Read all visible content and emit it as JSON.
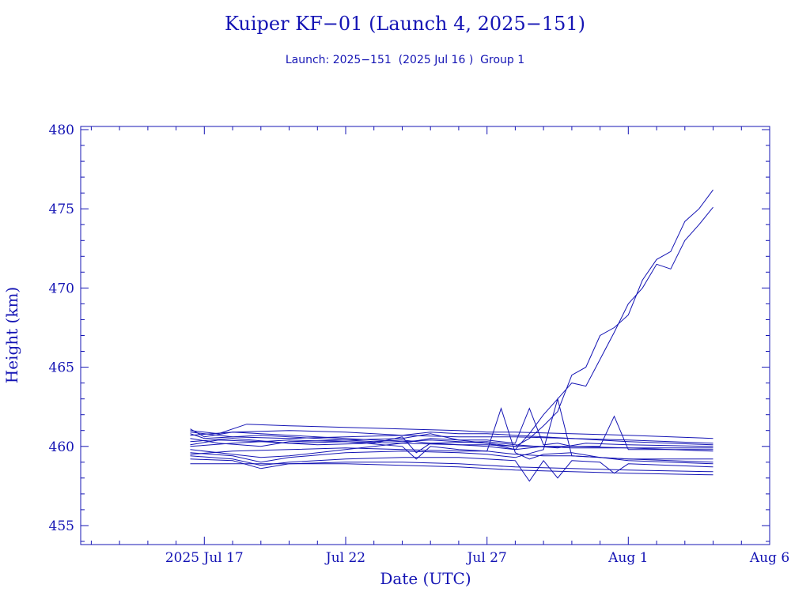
{
  "chart_data": {
    "type": "line",
    "title": "Kuiper KF−01 (Launch 4, 2025−151)",
    "subtitle": "Launch: 2025−151  (2025 Jul 16 )  Group 1",
    "xlabel": "Date (UTC)",
    "ylabel": "Height (km)",
    "xlim": [
      "2025-07-12T15:00",
      "2025-08-06T00:00"
    ],
    "ylim": [
      453.8,
      480.2
    ],
    "x_ticks": [
      {
        "date": "2025-07-17",
        "label": "2025 Jul 17"
      },
      {
        "date": "2025-07-22",
        "label": "Jul 22"
      },
      {
        "date": "2025-07-27",
        "label": "Jul 27"
      },
      {
        "date": "2025-08-01",
        "label": "Aug  1"
      },
      {
        "date": "2025-08-06",
        "label": "Aug  6"
      }
    ],
    "y_ticks": [
      455,
      460,
      465,
      470,
      475,
      480
    ],
    "grid": false,
    "line_color": "#1414b4",
    "series": [
      {
        "values": [
          [
            "2025-07-16T12:00",
            461.1
          ],
          [
            "2025-07-17T00:00",
            460.6
          ],
          [
            "2025-07-18T00:00",
            460.9
          ],
          [
            "2025-07-19T00:00",
            460.8
          ],
          [
            "2025-07-20T00:00",
            460.7
          ],
          [
            "2025-07-21T00:00",
            460.6
          ],
          [
            "2025-07-22T00:00",
            460.5
          ],
          [
            "2025-07-23T00:00",
            460.4
          ],
          [
            "2025-07-24T00:00",
            460.3
          ],
          [
            "2025-07-25T00:00",
            460.4
          ],
          [
            "2025-07-26T00:00",
            460.3
          ],
          [
            "2025-07-27T00:00",
            460.2
          ],
          [
            "2025-07-28T00:00",
            460.0
          ],
          [
            "2025-07-28T12:00",
            460.5
          ],
          [
            "2025-07-29T00:00",
            461.3
          ],
          [
            "2025-07-29T12:00",
            462.2
          ],
          [
            "2025-07-30T00:00",
            464.5
          ],
          [
            "2025-07-30T12:00",
            465.0
          ],
          [
            "2025-07-31T00:00",
            467.0
          ],
          [
            "2025-07-31T12:00",
            467.5
          ],
          [
            "2025-08-01T00:00",
            468.3
          ],
          [
            "2025-08-01T12:00",
            470.5
          ],
          [
            "2025-08-02T00:00",
            471.8
          ],
          [
            "2025-08-02T12:00",
            472.3
          ],
          [
            "2025-08-03T00:00",
            474.2
          ],
          [
            "2025-08-03T12:00",
            475.0
          ],
          [
            "2025-08-04T00:00",
            476.2
          ]
        ]
      },
      {
        "values": [
          [
            "2025-07-16T12:00",
            460.8
          ],
          [
            "2025-07-17T00:00",
            460.5
          ],
          [
            "2025-07-18T00:00",
            460.6
          ],
          [
            "2025-07-19T00:00",
            460.7
          ],
          [
            "2025-07-20T00:00",
            460.6
          ],
          [
            "2025-07-21T00:00",
            460.5
          ],
          [
            "2025-07-22T00:00",
            460.4
          ],
          [
            "2025-07-23T00:00",
            460.3
          ],
          [
            "2025-07-24T00:00",
            460.4
          ],
          [
            "2025-07-25T00:00",
            460.2
          ],
          [
            "2025-07-26T00:00",
            460.1
          ],
          [
            "2025-07-27T00:00",
            460.0
          ],
          [
            "2025-07-28T00:00",
            459.8
          ],
          [
            "2025-07-28T12:00",
            460.8
          ],
          [
            "2025-07-29T00:00",
            462.0
          ],
          [
            "2025-07-29T12:00",
            463.0
          ],
          [
            "2025-07-30T00:00",
            464.0
          ],
          [
            "2025-07-30T12:00",
            463.8
          ],
          [
            "2025-07-31T00:00",
            465.5
          ],
          [
            "2025-07-31T12:00",
            467.2
          ],
          [
            "2025-08-01T00:00",
            469.0
          ],
          [
            "2025-08-01T12:00",
            470.0
          ],
          [
            "2025-08-02T00:00",
            471.5
          ],
          [
            "2025-08-02T12:00",
            471.2
          ],
          [
            "2025-08-03T00:00",
            473.0
          ],
          [
            "2025-08-03T12:00",
            474.0
          ],
          [
            "2025-08-04T00:00",
            475.1
          ]
        ]
      },
      {
        "values": [
          [
            "2025-07-16T12:00",
            461.0
          ],
          [
            "2025-07-17T12:00",
            460.8
          ],
          [
            "2025-07-18T12:00",
            461.4
          ],
          [
            "2025-07-20T00:00",
            461.3
          ],
          [
            "2025-07-22T00:00",
            461.2
          ],
          [
            "2025-07-24T00:00",
            461.1
          ],
          [
            "2025-07-26T00:00",
            461.0
          ],
          [
            "2025-07-27T00:00",
            460.9
          ],
          [
            "2025-07-28T00:00",
            460.9
          ],
          [
            "2025-07-30T00:00",
            460.8
          ],
          [
            "2025-08-01T00:00",
            460.7
          ],
          [
            "2025-08-04T00:00",
            460.5
          ]
        ]
      },
      {
        "values": [
          [
            "2025-07-16T12:00",
            460.7
          ],
          [
            "2025-07-18T00:00",
            460.9
          ],
          [
            "2025-07-20T00:00",
            461.0
          ],
          [
            "2025-07-22T00:00",
            460.9
          ],
          [
            "2025-07-24T00:00",
            460.7
          ],
          [
            "2025-07-26T00:00",
            460.6
          ],
          [
            "2025-07-27T00:00",
            460.6
          ],
          [
            "2025-07-28T00:00",
            460.6
          ],
          [
            "2025-07-30T00:00",
            460.5
          ],
          [
            "2025-08-01T00:00",
            460.4
          ],
          [
            "2025-08-04T00:00",
            460.2
          ]
        ]
      },
      {
        "values": [
          [
            "2025-07-16T12:00",
            460.5
          ],
          [
            "2025-07-17T12:00",
            460.2
          ],
          [
            "2025-07-19T00:00",
            460.0
          ],
          [
            "2025-07-20T00:00",
            460.3
          ],
          [
            "2025-07-22T00:00",
            460.4
          ],
          [
            "2025-07-24T00:00",
            460.5
          ],
          [
            "2025-07-25T00:00",
            460.8
          ],
          [
            "2025-07-26T00:00",
            460.4
          ],
          [
            "2025-07-27T00:00",
            460.2
          ],
          [
            "2025-07-28T00:00",
            459.8
          ],
          [
            "2025-07-29T00:00",
            460.0
          ],
          [
            "2025-07-30T00:00",
            459.9
          ],
          [
            "2025-08-01T00:00",
            459.9
          ],
          [
            "2025-08-04T00:00",
            459.9
          ]
        ]
      },
      {
        "values": [
          [
            "2025-07-16T12:00",
            460.3
          ],
          [
            "2025-07-18T00:00",
            460.5
          ],
          [
            "2025-07-20T00:00",
            460.2
          ],
          [
            "2025-07-22T00:00",
            460.3
          ],
          [
            "2025-07-24T00:00",
            460.2
          ],
          [
            "2025-07-26T00:00",
            460.1
          ],
          [
            "2025-07-27T00:00",
            460.1
          ],
          [
            "2025-07-28T00:00",
            460.0
          ],
          [
            "2025-07-30T00:00",
            460.0
          ],
          [
            "2025-08-01T00:00",
            459.9
          ],
          [
            "2025-08-04T00:00",
            459.7
          ]
        ]
      },
      {
        "values": [
          [
            "2025-07-16T12:00",
            460.0
          ],
          [
            "2025-07-18T00:00",
            460.2
          ],
          [
            "2025-07-20T00:00",
            460.4
          ],
          [
            "2025-07-22T00:00",
            460.3
          ],
          [
            "2025-07-24T00:00",
            460.0
          ],
          [
            "2025-07-24T12:00",
            459.2
          ],
          [
            "2025-07-25T00:00",
            460.0
          ],
          [
            "2025-07-26T00:00",
            459.8
          ],
          [
            "2025-07-27T00:00",
            459.7
          ],
          [
            "2025-07-27T12:00",
            462.4
          ],
          [
            "2025-07-28T00:00",
            459.6
          ],
          [
            "2025-07-28T12:00",
            459.2
          ],
          [
            "2025-07-29T00:00",
            459.5
          ],
          [
            "2025-07-30T00:00",
            459.6
          ],
          [
            "2025-07-31T00:00",
            459.3
          ],
          [
            "2025-08-01T00:00",
            459.2
          ],
          [
            "2025-08-04T00:00",
            459.2
          ]
        ]
      },
      {
        "values": [
          [
            "2025-07-16T12:00",
            459.8
          ],
          [
            "2025-07-17T12:00",
            459.6
          ],
          [
            "2025-07-19T00:00",
            459.3
          ],
          [
            "2025-07-20T00:00",
            459.4
          ],
          [
            "2025-07-22T00:00",
            459.8
          ],
          [
            "2025-07-24T00:00",
            460.2
          ],
          [
            "2025-07-25T00:00",
            460.5
          ],
          [
            "2025-07-26T00:00",
            460.4
          ],
          [
            "2025-07-27T00:00",
            460.4
          ],
          [
            "2025-07-28T00:00",
            460.2
          ],
          [
            "2025-07-28T12:00",
            462.4
          ],
          [
            "2025-07-29T00:00",
            460.1
          ],
          [
            "2025-07-29T12:00",
            460.2
          ],
          [
            "2025-07-30T00:00",
            460.0
          ],
          [
            "2025-07-31T00:00",
            460.0
          ],
          [
            "2025-07-31T12:00",
            461.9
          ],
          [
            "2025-08-01T00:00",
            459.8
          ],
          [
            "2025-08-04T00:00",
            459.8
          ]
        ]
      },
      {
        "values": [
          [
            "2025-07-16T12:00",
            459.6
          ],
          [
            "2025-07-18T00:00",
            459.4
          ],
          [
            "2025-07-19T00:00",
            459.0
          ],
          [
            "2025-07-20T00:00",
            459.3
          ],
          [
            "2025-07-22T00:00",
            459.6
          ],
          [
            "2025-07-24T00:00",
            459.7
          ],
          [
            "2025-07-26T00:00",
            459.6
          ],
          [
            "2025-07-27T00:00",
            459.5
          ],
          [
            "2025-07-28T00:00",
            459.3
          ],
          [
            "2025-07-29T00:00",
            459.8
          ],
          [
            "2025-07-29T12:00",
            463.0
          ],
          [
            "2025-07-30T00:00",
            459.4
          ],
          [
            "2025-07-31T00:00",
            459.3
          ],
          [
            "2025-08-01T00:00",
            459.1
          ],
          [
            "2025-08-04T00:00",
            458.9
          ]
        ]
      },
      {
        "values": [
          [
            "2025-07-16T12:00",
            459.4
          ],
          [
            "2025-07-18T00:00",
            459.2
          ],
          [
            "2025-07-19T00:00",
            458.8
          ],
          [
            "2025-07-20T00:00",
            459.0
          ],
          [
            "2025-07-22T00:00",
            459.2
          ],
          [
            "2025-07-24T00:00",
            459.3
          ],
          [
            "2025-07-26T00:00",
            459.3
          ],
          [
            "2025-07-27T00:00",
            459.2
          ],
          [
            "2025-07-28T00:00",
            459.1
          ],
          [
            "2025-07-28T12:00",
            457.8
          ],
          [
            "2025-07-29T00:00",
            459.1
          ],
          [
            "2025-07-29T12:00",
            458.0
          ],
          [
            "2025-07-30T00:00",
            459.1
          ],
          [
            "2025-07-31T00:00",
            459.0
          ],
          [
            "2025-07-31T12:00",
            458.3
          ],
          [
            "2025-08-01T00:00",
            458.9
          ],
          [
            "2025-08-04T00:00",
            458.7
          ]
        ]
      },
      {
        "values": [
          [
            "2025-07-16T12:00",
            459.2
          ],
          [
            "2025-07-18T00:00",
            459.1
          ],
          [
            "2025-07-19T00:00",
            458.6
          ],
          [
            "2025-07-20T00:00",
            458.9
          ],
          [
            "2025-07-22T00:00",
            459.0
          ],
          [
            "2025-07-24T00:00",
            459.0
          ],
          [
            "2025-07-26T00:00",
            458.9
          ],
          [
            "2025-07-27T00:00",
            458.8
          ],
          [
            "2025-07-28T00:00",
            458.7
          ],
          [
            "2025-07-30T00:00",
            458.6
          ],
          [
            "2025-08-01T00:00",
            458.5
          ],
          [
            "2025-08-04T00:00",
            458.4
          ]
        ]
      },
      {
        "values": [
          [
            "2025-07-16T12:00",
            458.9
          ],
          [
            "2025-07-18T00:00",
            458.9
          ],
          [
            "2025-07-20T00:00",
            458.9
          ],
          [
            "2025-07-22T00:00",
            458.9
          ],
          [
            "2025-07-24T00:00",
            458.8
          ],
          [
            "2025-07-26T00:00",
            458.7
          ],
          [
            "2025-07-27T00:00",
            458.6
          ],
          [
            "2025-07-28T00:00",
            458.5
          ],
          [
            "2025-07-30T00:00",
            458.4
          ],
          [
            "2025-08-01T00:00",
            458.3
          ],
          [
            "2025-08-04T00:00",
            458.2
          ]
        ]
      },
      {
        "values": [
          [
            "2025-07-16T12:00",
            460.9
          ],
          [
            "2025-07-18T00:00",
            460.6
          ],
          [
            "2025-07-20T00:00",
            460.5
          ],
          [
            "2025-07-22T00:00",
            460.6
          ],
          [
            "2025-07-24T00:00",
            460.7
          ],
          [
            "2025-07-25T00:00",
            460.9
          ],
          [
            "2025-07-26T00:00",
            460.8
          ],
          [
            "2025-07-27T00:00",
            460.8
          ],
          [
            "2025-07-28T00:00",
            460.7
          ],
          [
            "2025-07-30T00:00",
            460.5
          ],
          [
            "2025-08-01T00:00",
            460.3
          ],
          [
            "2025-08-04T00:00",
            460.1
          ]
        ]
      },
      {
        "values": [
          [
            "2025-07-16T12:00",
            460.1
          ],
          [
            "2025-07-17T12:00",
            460.4
          ],
          [
            "2025-07-19T00:00",
            460.3
          ],
          [
            "2025-07-21T00:00",
            460.1
          ],
          [
            "2025-07-23T00:00",
            460.2
          ],
          [
            "2025-07-24T00:00",
            460.6
          ],
          [
            "2025-07-24T12:00",
            459.6
          ],
          [
            "2025-07-25T00:00",
            460.2
          ],
          [
            "2025-07-27T00:00",
            460.3
          ],
          [
            "2025-07-28T00:00",
            460.1
          ],
          [
            "2025-07-29T12:00",
            459.9
          ],
          [
            "2025-07-30T12:00",
            460.2
          ],
          [
            "2025-08-01T00:00",
            460.1
          ],
          [
            "2025-08-04T00:00",
            460.0
          ]
        ]
      },
      {
        "values": [
          [
            "2025-07-16T12:00",
            459.5
          ],
          [
            "2025-07-18T00:00",
            459.7
          ],
          [
            "2025-07-20T00:00",
            459.8
          ],
          [
            "2025-07-22T00:00",
            459.9
          ],
          [
            "2025-07-24T00:00",
            459.8
          ],
          [
            "2025-07-26T00:00",
            459.7
          ],
          [
            "2025-07-27T00:00",
            459.7
          ],
          [
            "2025-07-28T00:00",
            459.5
          ],
          [
            "2025-07-29T00:00",
            459.4
          ],
          [
            "2025-07-30T00:00",
            459.4
          ],
          [
            "2025-07-31T00:00",
            459.3
          ],
          [
            "2025-08-01T00:00",
            459.2
          ],
          [
            "2025-08-04T00:00",
            459.0
          ]
        ]
      }
    ]
  }
}
